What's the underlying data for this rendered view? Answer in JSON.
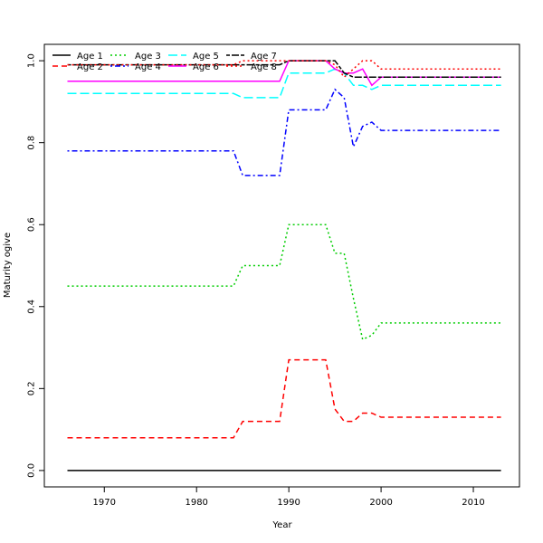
{
  "chart_data": {
    "type": "line",
    "title": "",
    "xlabel": "Year",
    "ylabel": "Maturity ogive",
    "xlim": [
      1963.5,
      2015
    ],
    "ylim": [
      -0.04,
      1.04
    ],
    "xticks": [
      1970,
      1980,
      1990,
      2000,
      2010
    ],
    "yticks": [
      0.0,
      0.2,
      0.4,
      0.6,
      0.8,
      1.0
    ],
    "grid": false,
    "legend_position": "top-left",
    "series": [
      {
        "name": "Age 1",
        "color": "#000000",
        "dash": "solid",
        "points": [
          [
            1966,
            0
          ],
          [
            2013,
            0
          ]
        ]
      },
      {
        "name": "Age 2",
        "color": "#ff0000",
        "dash": "dashed",
        "points": [
          [
            1966,
            0.08
          ],
          [
            1984,
            0.08
          ],
          [
            1985,
            0.12
          ],
          [
            1989,
            0.12
          ],
          [
            1990,
            0.27
          ],
          [
            1994,
            0.27
          ],
          [
            1995,
            0.15
          ],
          [
            1996,
            0.12
          ],
          [
            1997,
            0.12
          ],
          [
            1998,
            0.14
          ],
          [
            1999,
            0.14
          ],
          [
            2000,
            0.13
          ],
          [
            2013,
            0.13
          ]
        ]
      },
      {
        "name": "Age 3",
        "color": "#00cd00",
        "dash": "dotted",
        "points": [
          [
            1966,
            0.45
          ],
          [
            1984,
            0.45
          ],
          [
            1985,
            0.5
          ],
          [
            1989,
            0.5
          ],
          [
            1990,
            0.6
          ],
          [
            1994,
            0.6
          ],
          [
            1995,
            0.53
          ],
          [
            1996,
            0.53
          ],
          [
            1997,
            0.42
          ],
          [
            1998,
            0.32
          ],
          [
            1999,
            0.33
          ],
          [
            2000,
            0.36
          ],
          [
            2013,
            0.36
          ]
        ]
      },
      {
        "name": "Age 4",
        "color": "#0000ff",
        "dash": "dotdash",
        "points": [
          [
            1966,
            0.78
          ],
          [
            1984,
            0.78
          ],
          [
            1985,
            0.72
          ],
          [
            1989,
            0.72
          ],
          [
            1990,
            0.88
          ],
          [
            1994,
            0.88
          ],
          [
            1995,
            0.93
          ],
          [
            1996,
            0.91
          ],
          [
            1997,
            0.79
          ],
          [
            1998,
            0.84
          ],
          [
            1999,
            0.85
          ],
          [
            2000,
            0.83
          ],
          [
            2013,
            0.83
          ]
        ]
      },
      {
        "name": "Age 5",
        "color": "#00ffff",
        "dash": "longdash",
        "points": [
          [
            1966,
            0.92
          ],
          [
            1984,
            0.92
          ],
          [
            1985,
            0.91
          ],
          [
            1989,
            0.91
          ],
          [
            1990,
            0.97
          ],
          [
            1994,
            0.97
          ],
          [
            1995,
            0.98
          ],
          [
            1996,
            0.97
          ],
          [
            1997,
            0.94
          ],
          [
            1998,
            0.94
          ],
          [
            1999,
            0.93
          ],
          [
            2000,
            0.94
          ],
          [
            2013,
            0.94
          ]
        ]
      },
      {
        "name": "Age 6",
        "color": "#ff00ff",
        "dash": "solid",
        "points": [
          [
            1966,
            0.95
          ],
          [
            1989,
            0.95
          ],
          [
            1990,
            1.0
          ],
          [
            1994,
            1.0
          ],
          [
            1995,
            0.98
          ],
          [
            1996,
            0.97
          ],
          [
            1997,
            0.97
          ],
          [
            1998,
            0.98
          ],
          [
            1999,
            0.94
          ],
          [
            2000,
            0.96
          ],
          [
            2013,
            0.96
          ]
        ]
      },
      {
        "name": "Age 7",
        "color": "#000000",
        "dash": "twodash",
        "points": [
          [
            1966,
            0.99
          ],
          [
            1984,
            0.99
          ],
          [
            1985,
            0.99
          ],
          [
            1989,
            0.99
          ],
          [
            1990,
            1.0
          ],
          [
            1995,
            1.0
          ],
          [
            1996,
            0.97
          ],
          [
            1997,
            0.96
          ],
          [
            2013,
            0.96
          ]
        ]
      },
      {
        "name": "Age 8",
        "color": "#ff0000",
        "dash": "dotted",
        "points": [
          [
            1966,
            0.99
          ],
          [
            1984,
            0.99
          ],
          [
            1985,
            1.0
          ],
          [
            1989,
            1.0
          ],
          [
            1990,
            1.0
          ],
          [
            1994,
            1.0
          ],
          [
            1995,
            0.99
          ],
          [
            1996,
            0.96
          ],
          [
            1997,
            0.98
          ],
          [
            1998,
            1.0
          ],
          [
            1999,
            1.0
          ],
          [
            2000,
            0.98
          ],
          [
            2013,
            0.98
          ]
        ]
      }
    ]
  }
}
